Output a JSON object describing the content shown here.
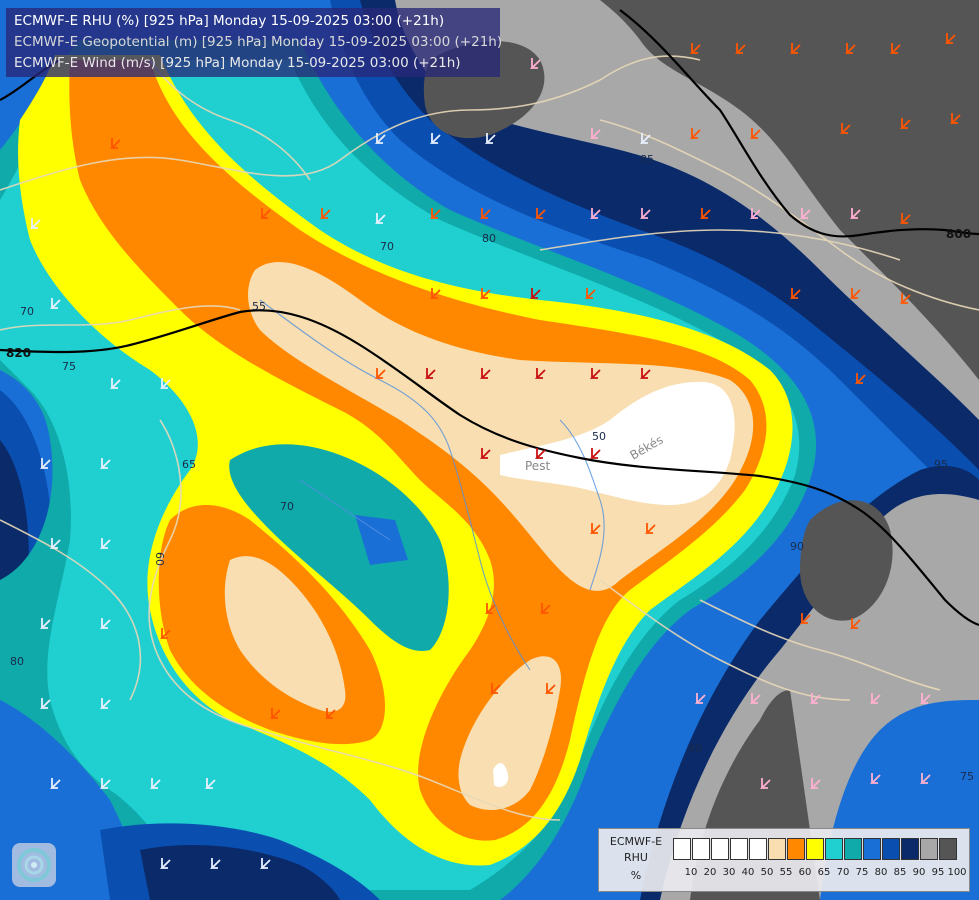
{
  "header": {
    "line1": "ECMWF-E RHU (%) [925 hPa] Monday 15-09-2025 03:00 (+21h)",
    "line2": "ECMWF-E Geopotential (m) [925 hPa] Monday 15-09-2025 03:00 (+21h)",
    "line3": "ECMWF-E Wind (m/s) [925 hPa] Monday 15-09-2025 03:00 (+21h)"
  },
  "legend": {
    "model": "ECMWF-E",
    "variable": "RHU",
    "unit": "%",
    "ticks": [
      "10",
      "20",
      "30",
      "40",
      "50",
      "55",
      "60",
      "65",
      "70",
      "75",
      "80",
      "85",
      "90",
      "95",
      "100"
    ],
    "colors": [
      "#ffffff",
      "#ffffff",
      "#ffffff",
      "#ffffff",
      "#ffffff",
      "#f8deb0",
      "#ff8800",
      "#ffff00",
      "#20d0d0",
      "#10aaaa",
      "#1a6fd6",
      "#0a4fb0",
      "#0a2a6a",
      "#a8a8a8",
      "#555555"
    ]
  },
  "places": {
    "pest": "Pest",
    "bekes": "Békés"
  },
  "geopotential_labels": {
    "g820": "820",
    "g800": "800"
  },
  "contour_labels": {
    "c50": "50",
    "c55": "55",
    "c60": "60",
    "c65": "65",
    "c70a": "70",
    "c70b": "70",
    "c70c": "70",
    "c75a": "75",
    "c75b": "75",
    "c80a": "80",
    "c80b": "80",
    "c85": "85",
    "c90a": "90",
    "c90b": "90",
    "c95": "95"
  }
}
